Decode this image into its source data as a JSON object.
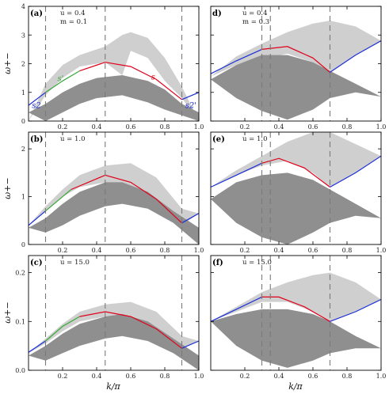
{
  "figure": {
    "xlabel": "k/π",
    "ylabel": "ω+−",
    "colors": {
      "light_band": "#cfcfcf",
      "dark_band": "#8f8f8f",
      "red_curve": "#e0001a",
      "blue_curve": "#1a2fd6",
      "green_curve": "#3aa83a",
      "dashed": "#7a7a7a"
    }
  },
  "chart_data": [
    {
      "type": "area",
      "panel_label": "(a)",
      "params": [
        "u = 0.4",
        "m = 0.1"
      ],
      "xlim": [
        0.0,
        1.0
      ],
      "ylim": [
        0,
        4
      ],
      "x_ticks": [
        "0.2",
        "0.4",
        "0.6",
        "0.8",
        "1.0"
      ],
      "y_ticks": [
        "0",
        "1",
        "2",
        "3",
        "4"
      ],
      "dashed_lines_x": [
        0.1,
        0.45,
        0.9
      ],
      "curve_labels": [
        {
          "text": "s2",
          "color": "blue",
          "x": 0.02,
          "y": 0.45
        },
        {
          "text": "s'",
          "color": "green",
          "x": 0.17,
          "y": 1.4
        },
        {
          "text": "s",
          "color": "red",
          "x": 0.72,
          "y": 1.45
        },
        {
          "text": "s2'",
          "color": "blue",
          "x": 0.92,
          "y": 0.45
        }
      ],
      "bands": {
        "light": {
          "x": [
            0.0,
            0.1,
            0.2,
            0.3,
            0.45,
            0.55,
            0.6,
            0.7,
            0.8,
            0.9,
            1.0
          ],
          "lower": [
            0.0,
            0.9,
            1.5,
            1.9,
            2.05,
            1.6,
            2.45,
            2.2,
            1.4,
            0.8,
            0.0
          ],
          "upper": [
            0.0,
            1.3,
            1.95,
            2.3,
            2.6,
            3.0,
            3.1,
            2.9,
            2.2,
            1.2,
            0.0
          ]
        },
        "dark": {
          "x": [
            0.0,
            0.1,
            0.2,
            0.3,
            0.4,
            0.55,
            0.7,
            0.8,
            0.9,
            1.0
          ],
          "lower": [
            0.3,
            0.0,
            0.3,
            0.6,
            0.8,
            0.9,
            0.65,
            0.4,
            0.2,
            0.0
          ],
          "upper": [
            0.3,
            0.6,
            1.0,
            1.3,
            1.5,
            1.6,
            1.4,
            1.1,
            0.6,
            0.3
          ]
        }
      },
      "curves": [
        {
          "color": "blue",
          "x": [
            0.0,
            0.1
          ],
          "y": [
            0.55,
            1.0
          ]
        },
        {
          "color": "green",
          "x": [
            0.1,
            0.2,
            0.3
          ],
          "y": [
            1.0,
            1.4,
            1.75
          ]
        },
        {
          "color": "red",
          "x": [
            0.3,
            0.45,
            0.6,
            0.75,
            0.9
          ],
          "y": [
            1.75,
            2.05,
            1.9,
            1.45,
            0.75
          ]
        },
        {
          "color": "blue",
          "x": [
            0.9,
            1.0
          ],
          "y": [
            0.75,
            1.0
          ]
        }
      ]
    },
    {
      "type": "area",
      "panel_label": "d)",
      "params": [
        "u = 0.4",
        "m = 0.3"
      ],
      "xlim": [
        0.0,
        1.0
      ],
      "ylim": [
        0,
        4
      ],
      "x_ticks": [
        "0.2",
        "0.4",
        "0.6",
        "0.8",
        "1.0"
      ],
      "y_ticks": [],
      "dashed_lines_x": [
        0.3,
        0.35,
        0.7
      ],
      "curve_labels": [],
      "bands": {
        "light": {
          "x": [
            0.0,
            0.15,
            0.3,
            0.45,
            0.6,
            0.7,
            0.85,
            1.0
          ],
          "lower": [
            1.55,
            1.95,
            2.15,
            2.35,
            2.05,
            1.7,
            2.3,
            2.8
          ],
          "upper": [
            1.55,
            2.25,
            2.7,
            3.1,
            3.4,
            3.5,
            3.3,
            2.8
          ]
        },
        "dark": {
          "x": [
            0.0,
            0.15,
            0.3,
            0.45,
            0.6,
            0.7,
            0.85,
            1.0
          ],
          "lower": [
            1.45,
            0.8,
            0.35,
            0.05,
            0.4,
            0.8,
            1.0,
            0.85
          ],
          "upper": [
            1.45,
            1.95,
            2.3,
            2.3,
            2.05,
            1.75,
            1.3,
            0.85
          ]
        }
      },
      "curves": [
        {
          "color": "blue",
          "x": [
            0.0,
            0.15,
            0.3
          ],
          "y": [
            1.65,
            2.1,
            2.5
          ]
        },
        {
          "color": "red",
          "x": [
            0.3,
            0.45,
            0.6,
            0.7
          ],
          "y": [
            2.5,
            2.6,
            2.2,
            1.7
          ]
        },
        {
          "color": "blue",
          "x": [
            0.7,
            0.85,
            1.0
          ],
          "y": [
            1.7,
            2.3,
            2.8
          ]
        }
      ]
    },
    {
      "type": "area",
      "panel_label": "(b)",
      "params": [
        "u = 1.0"
      ],
      "xlim": [
        0.0,
        1.0
      ],
      "ylim": [
        0,
        2.35
      ],
      "x_ticks": [
        "0.2",
        "0.4",
        "0.6",
        "0.8",
        "1.0"
      ],
      "y_ticks": [
        "0",
        "1",
        "2"
      ],
      "dashed_lines_x": [
        0.1,
        0.45,
        0.9
      ],
      "curve_labels": [],
      "bands": {
        "light": {
          "x": [
            0.0,
            0.1,
            0.2,
            0.3,
            0.45,
            0.6,
            0.75,
            0.9,
            1.0
          ],
          "lower": [
            0.4,
            0.7,
            1.0,
            1.2,
            1.3,
            1.15,
            0.8,
            0.4,
            0.65
          ],
          "upper": [
            0.4,
            0.8,
            1.15,
            1.45,
            1.65,
            1.7,
            1.4,
            0.75,
            0.65
          ]
        },
        "dark": {
          "x": [
            0.0,
            0.1,
            0.2,
            0.3,
            0.45,
            0.55,
            0.7,
            0.85,
            1.0
          ],
          "lower": [
            0.35,
            0.25,
            0.4,
            0.6,
            0.8,
            0.85,
            0.75,
            0.45,
            0.0
          ],
          "upper": [
            0.35,
            0.55,
            0.85,
            1.1,
            1.3,
            1.3,
            1.1,
            0.7,
            0.35
          ]
        }
      },
      "curves": [
        {
          "color": "blue",
          "x": [
            0.0,
            0.1
          ],
          "y": [
            0.4,
            0.7
          ]
        },
        {
          "color": "green",
          "x": [
            0.1,
            0.2,
            0.25
          ],
          "y": [
            0.7,
            1.0,
            1.15
          ]
        },
        {
          "color": "red",
          "x": [
            0.25,
            0.45,
            0.6,
            0.75,
            0.9
          ],
          "y": [
            1.15,
            1.45,
            1.3,
            0.95,
            0.45
          ]
        },
        {
          "color": "blue",
          "x": [
            0.9,
            1.0
          ],
          "y": [
            0.45,
            0.65
          ]
        }
      ]
    },
    {
      "type": "area",
      "panel_label": "(e)",
      "params": [
        "u = 1.0"
      ],
      "xlim": [
        0.0,
        1.0
      ],
      "ylim": [
        0,
        2.35
      ],
      "x_ticks": [
        "0.2",
        "0.4",
        "0.6",
        "0.8",
        "1.0"
      ],
      "y_ticks": [],
      "dashed_lines_x": [
        0.3,
        0.35,
        0.7
      ],
      "curve_labels": [],
      "bands": {
        "light": {
          "x": [
            0.0,
            0.15,
            0.3,
            0.45,
            0.6,
            0.7,
            0.85,
            1.0
          ],
          "lower": [
            1.2,
            1.45,
            1.65,
            1.75,
            1.5,
            1.2,
            1.5,
            1.85
          ],
          "upper": [
            1.2,
            1.55,
            1.85,
            2.15,
            2.35,
            2.35,
            2.1,
            1.85
          ]
        },
        "dark": {
          "x": [
            0.0,
            0.15,
            0.3,
            0.45,
            0.6,
            0.7,
            0.85,
            1.0
          ],
          "lower": [
            0.95,
            0.45,
            0.15,
            0.0,
            0.25,
            0.45,
            0.6,
            0.55
          ],
          "upper": [
            0.95,
            1.3,
            1.45,
            1.5,
            1.35,
            1.15,
            0.85,
            0.55
          ]
        }
      },
      "curves": [
        {
          "color": "blue",
          "x": [
            0.0,
            0.15,
            0.3
          ],
          "y": [
            1.2,
            1.45,
            1.7
          ]
        },
        {
          "color": "red",
          "x": [
            0.3,
            0.4,
            0.55,
            0.7
          ],
          "y": [
            1.7,
            1.8,
            1.6,
            1.2
          ]
        },
        {
          "color": "blue",
          "x": [
            0.7,
            0.85,
            1.0
          ],
          "y": [
            1.2,
            1.5,
            1.85
          ]
        }
      ]
    },
    {
      "type": "area",
      "panel_label": "(c)",
      "params": [
        "u = 15.0"
      ],
      "xlim": [
        0.0,
        1.0
      ],
      "ylim": [
        0,
        0.235
      ],
      "x_ticks": [
        "0.2",
        "0.4",
        "0.6",
        "0.8",
        "1.0"
      ],
      "y_ticks": [
        "0.0",
        "0.1",
        "0.2"
      ],
      "dashed_lines_x": [
        0.1,
        0.45,
        0.9
      ],
      "curve_labels": [],
      "bands": {
        "light": {
          "x": [
            0.0,
            0.1,
            0.2,
            0.3,
            0.45,
            0.6,
            0.75,
            0.9,
            1.0
          ],
          "lower": [
            0.035,
            0.055,
            0.08,
            0.1,
            0.11,
            0.1,
            0.08,
            0.045,
            0.06
          ],
          "upper": [
            0.035,
            0.065,
            0.095,
            0.12,
            0.135,
            0.14,
            0.12,
            0.07,
            0.06
          ]
        },
        "dark": {
          "x": [
            0.0,
            0.1,
            0.2,
            0.3,
            0.45,
            0.55,
            0.7,
            0.85,
            1.0
          ],
          "lower": [
            0.03,
            0.02,
            0.035,
            0.05,
            0.065,
            0.07,
            0.06,
            0.035,
            0.0
          ],
          "upper": [
            0.03,
            0.05,
            0.075,
            0.095,
            0.11,
            0.115,
            0.1,
            0.065,
            0.03
          ]
        }
      },
      "curves": [
        {
          "color": "blue",
          "x": [
            0.0,
            0.1
          ],
          "y": [
            0.037,
            0.06
          ]
        },
        {
          "color": "green",
          "x": [
            0.1,
            0.2,
            0.3
          ],
          "y": [
            0.06,
            0.09,
            0.11
          ]
        },
        {
          "color": "red",
          "x": [
            0.3,
            0.45,
            0.6,
            0.75,
            0.9
          ],
          "y": [
            0.11,
            0.12,
            0.11,
            0.085,
            0.045
          ]
        },
        {
          "color": "blue",
          "x": [
            0.9,
            1.0
          ],
          "y": [
            0.045,
            0.06
          ]
        }
      ]
    },
    {
      "type": "area",
      "panel_label": "(f)",
      "params": [
        "u = 15.0"
      ],
      "xlim": [
        0.0,
        1.0
      ],
      "ylim": [
        0,
        0.235
      ],
      "x_ticks": [
        "0.2",
        "0.4",
        "0.6",
        "0.8",
        "1.0"
      ],
      "y_ticks": [],
      "dashed_lines_x": [
        0.3,
        0.35,
        0.7
      ],
      "curve_labels": [],
      "bands": {
        "light": {
          "x": [
            0.0,
            0.15,
            0.3,
            0.45,
            0.6,
            0.7,
            0.85,
            1.0
          ],
          "lower": [
            0.1,
            0.12,
            0.14,
            0.14,
            0.12,
            0.1,
            0.12,
            0.145
          ],
          "upper": [
            0.1,
            0.13,
            0.16,
            0.18,
            0.195,
            0.2,
            0.18,
            0.145
          ]
        },
        "dark": {
          "x": [
            0.0,
            0.15,
            0.3,
            0.45,
            0.6,
            0.7,
            0.85,
            1.0
          ],
          "lower": [
            0.1,
            0.05,
            0.02,
            0.005,
            0.02,
            0.035,
            0.045,
            0.045
          ],
          "upper": [
            0.1,
            0.115,
            0.125,
            0.125,
            0.115,
            0.1,
            0.07,
            0.045
          ]
        }
      },
      "curves": [
        {
          "color": "blue",
          "x": [
            0.0,
            0.15,
            0.3
          ],
          "y": [
            0.1,
            0.125,
            0.15
          ]
        },
        {
          "color": "red",
          "x": [
            0.3,
            0.4,
            0.55,
            0.7
          ],
          "y": [
            0.15,
            0.15,
            0.13,
            0.1
          ]
        },
        {
          "color": "blue",
          "x": [
            0.7,
            0.85,
            1.0
          ],
          "y": [
            0.1,
            0.12,
            0.145
          ]
        }
      ]
    }
  ]
}
